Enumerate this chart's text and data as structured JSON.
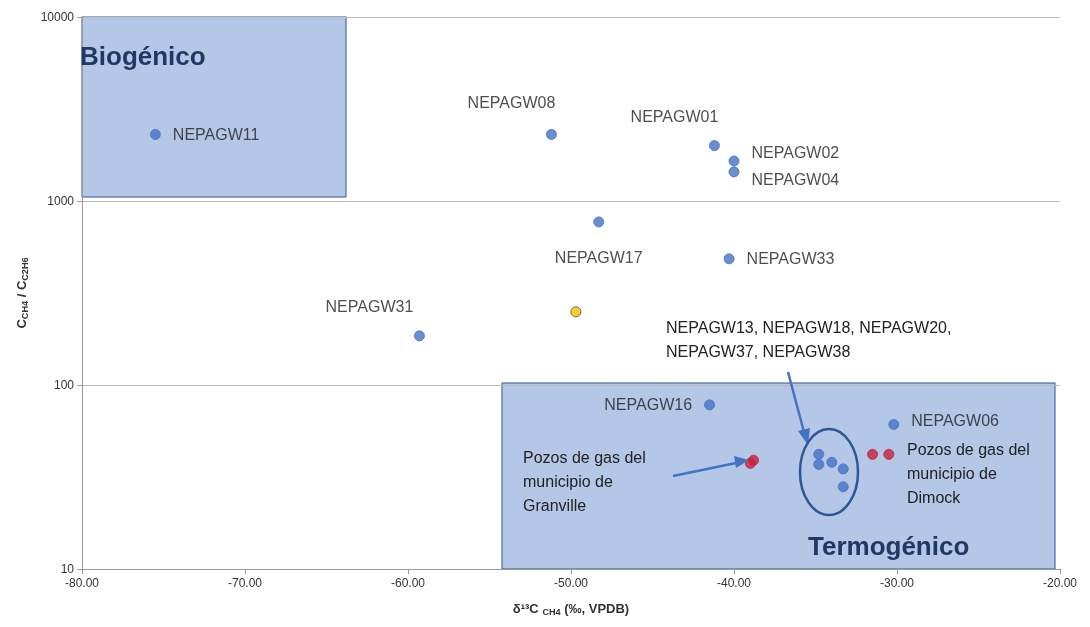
{
  "chart_data": {
    "type": "scatter",
    "xlabel": "δ¹³C $_{CH4}$ (‰, VPDB)",
    "ylabel": "C$_{CH4}$ / C$_{C2H6}$",
    "xlim": [
      -80,
      -20
    ],
    "xticks": [
      {
        "value": -80,
        "label": "-80.00"
      },
      {
        "value": -70,
        "label": "-70.00"
      },
      {
        "value": -60,
        "label": "-60.00"
      },
      {
        "value": -50,
        "label": "-50.00"
      },
      {
        "value": -40,
        "label": "-40.00"
      },
      {
        "value": -30,
        "label": "-30.00"
      },
      {
        "value": -20,
        "label": "-20.00"
      }
    ],
    "ylim": [
      10,
      10000
    ],
    "yticks": [
      10,
      100,
      1000,
      10000
    ],
    "log": "y",
    "grid": "y",
    "marker": "circle",
    "series": [
      {
        "color": "#4472c4",
        "x": [
          -75.5,
          -51.2,
          -41.2,
          -40.0,
          -40.0,
          -48.3,
          -40.3,
          -59.3,
          -41.5,
          -30.2,
          -34.8,
          -34.8,
          -34.0,
          -33.3,
          -33.3
        ],
        "values": [
          2300,
          2300,
          2000,
          1650,
          1440,
          770,
          485,
          185,
          78,
          61,
          42,
          37,
          38,
          35,
          28
        ],
        "value_labels": [
          "NEPAGW11",
          "NEPAGW08",
          "NEPAGW01",
          "NEPAGW02",
          "NEPAGW04",
          "NEPAGW17",
          "NEPAGW33",
          "NEPAGW31",
          "NEPAGW16",
          "NEPAGW06",
          null,
          null,
          null,
          null,
          null
        ]
      },
      {
        "color": "#ffc000",
        "x": [
          -49.7
        ],
        "values": [
          250
        ]
      },
      {
        "color": "#c8203c",
        "x": [
          -38.8,
          -39.0,
          -31.5,
          -30.5
        ],
        "values": [
          39,
          37.5,
          42,
          42
        ]
      }
    ],
    "annotations": [
      "NEPAGW13, NEPAGW18, NEPAGW20,\nNEPAGW37, NEPAGW38",
      "Pozos de gas del\nmunicipio de\nGranville",
      "Pozos de gas del\nmunicipio de\nDimock",
      "Biogénico",
      "Termogénico"
    ]
  }
}
